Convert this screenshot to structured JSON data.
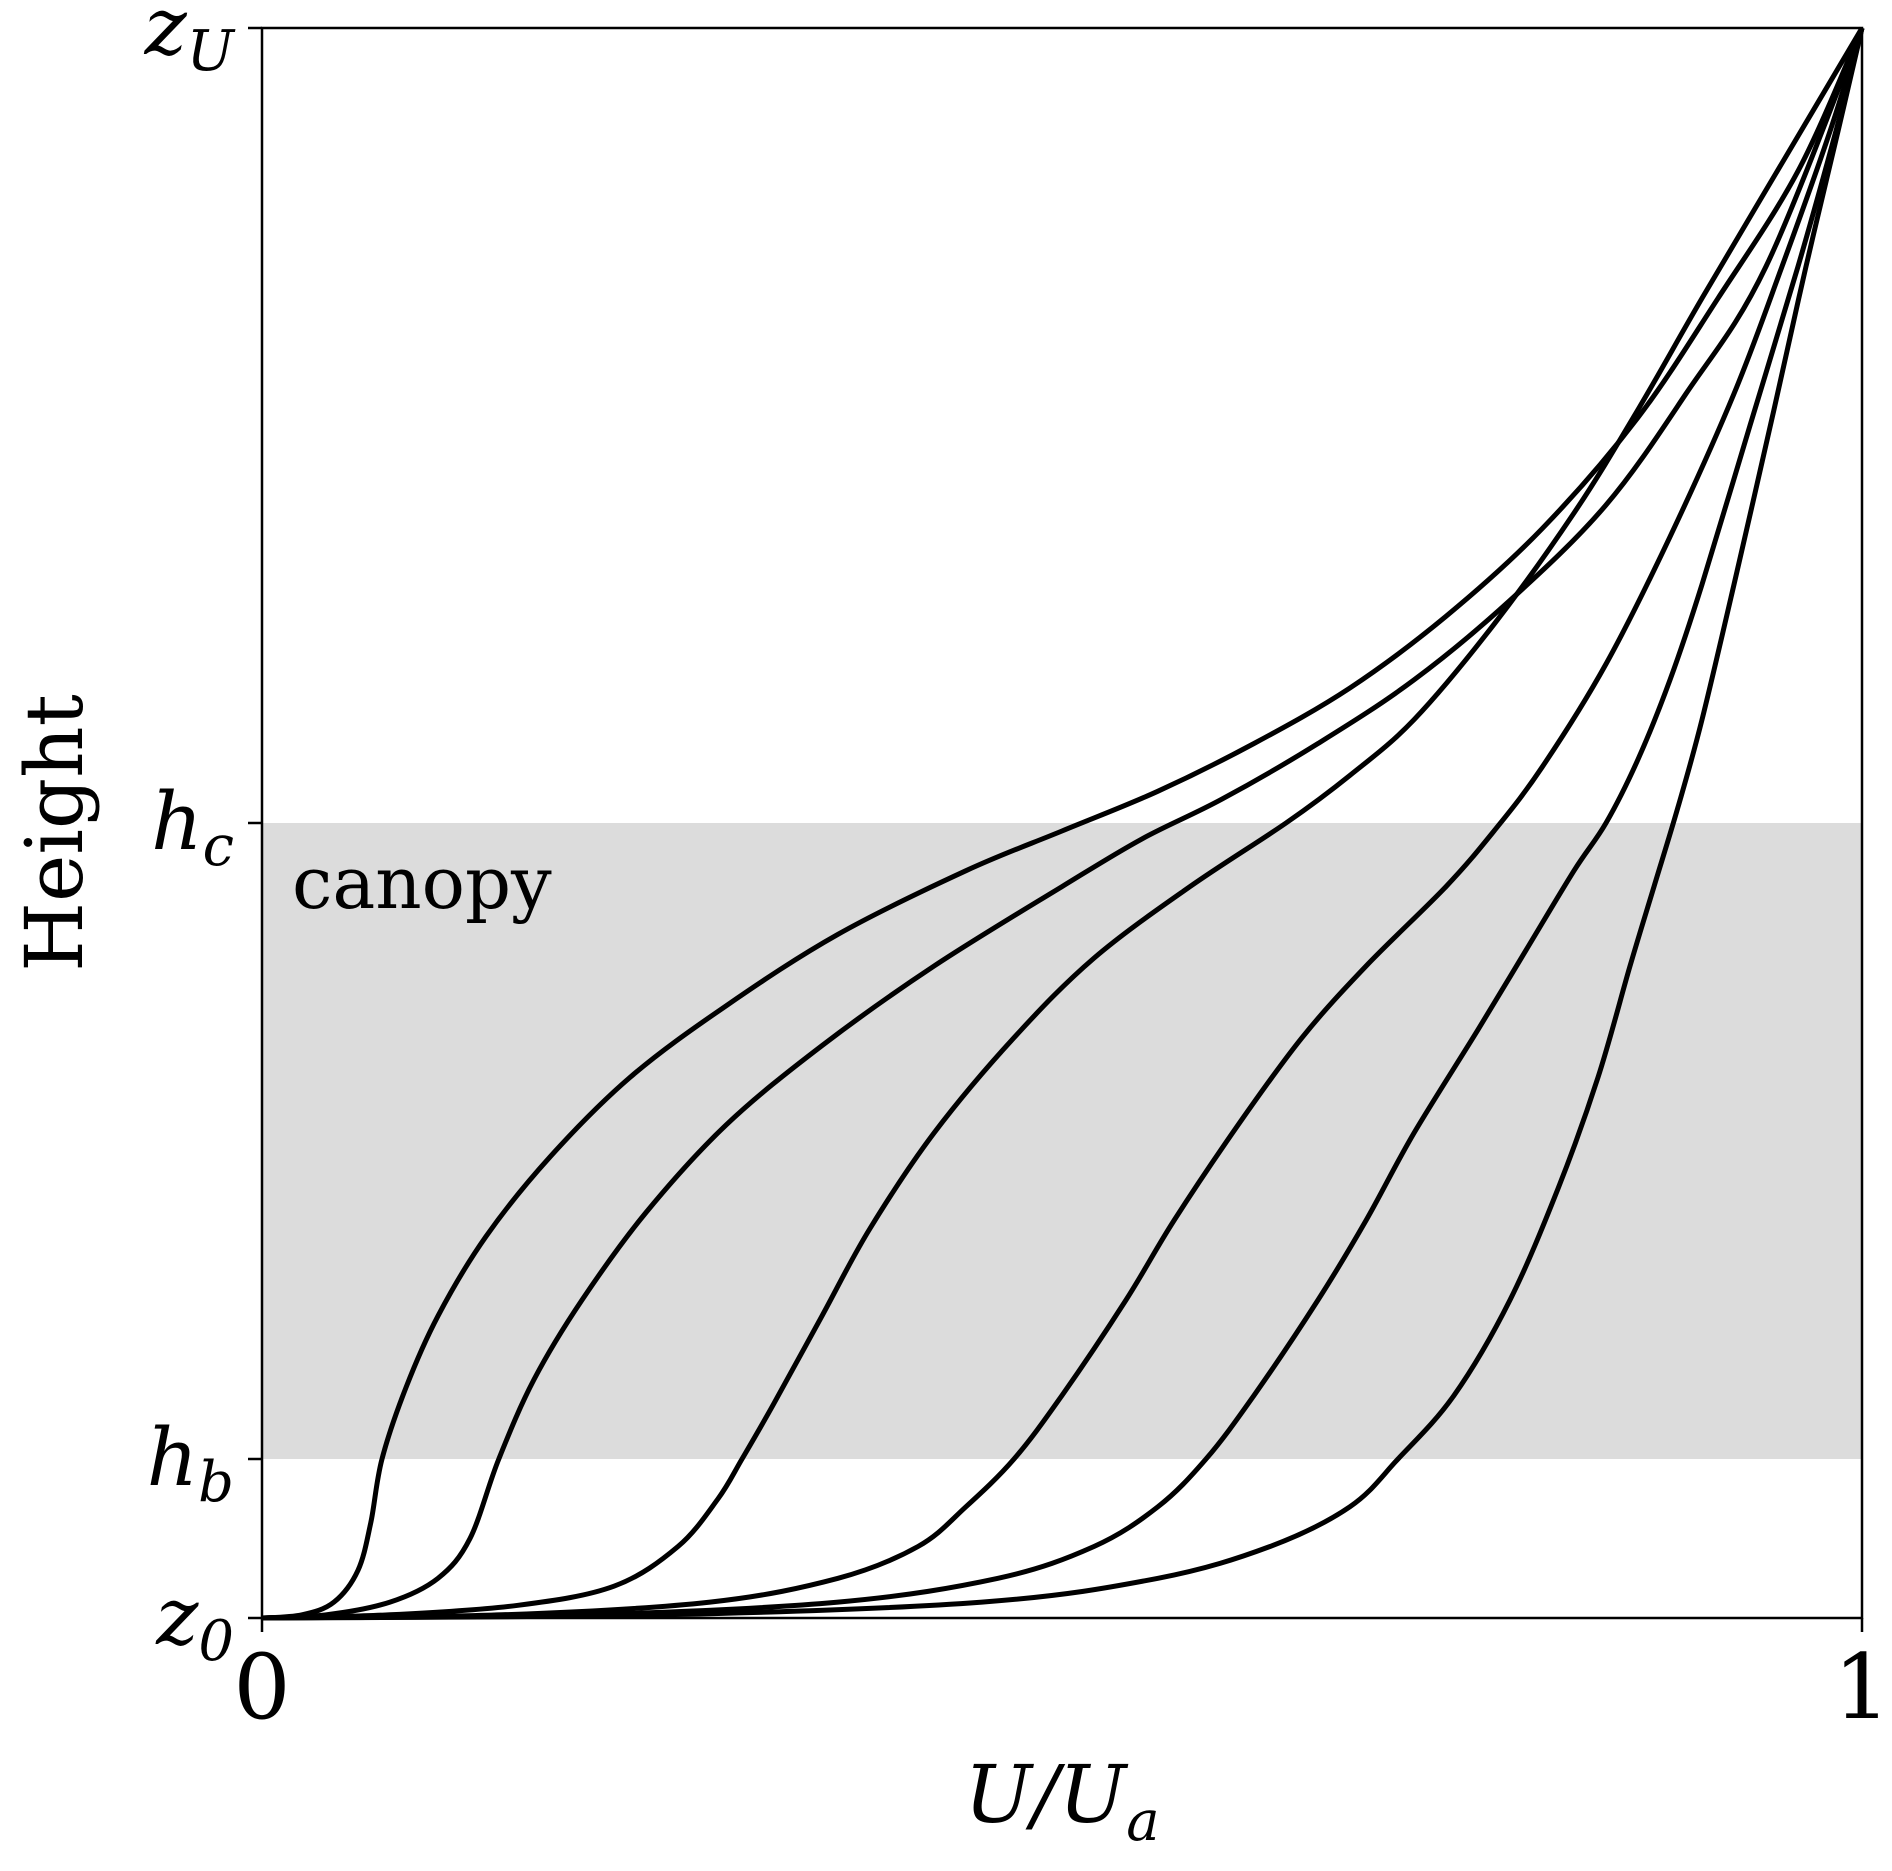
{
  "chart_data": {
    "type": "line",
    "xlabel": {
      "main": "U/U",
      "sub": "a"
    },
    "ylabel": "Height",
    "xlim": [
      0,
      1
    ],
    "ylim": [
      0,
      1
    ],
    "x_ticks": [
      {
        "value": 0,
        "label": "0"
      },
      {
        "value": 1,
        "label": "1"
      }
    ],
    "y_ticks": [
      {
        "value": 0.0,
        "main": "z",
        "sub": "0"
      },
      {
        "value": 0.1,
        "main": "h",
        "sub": "b"
      },
      {
        "value": 0.5,
        "main": "h",
        "sub": "c"
      },
      {
        "value": 1.0,
        "main": "z",
        "sub": "U"
      }
    ],
    "shaded_region": {
      "label": "canopy",
      "y_from": 0.1,
      "y_to": 0.5,
      "color": "#dcdcdc"
    },
    "grid": false,
    "line_color": "#000000",
    "series": [
      {
        "points": [
          [
            0,
            0
          ],
          [
            0.025,
            0.002
          ],
          [
            0.045,
            0.01
          ],
          [
            0.06,
            0.03
          ],
          [
            0.068,
            0.06
          ],
          [
            0.075,
            0.1
          ],
          [
            0.09,
            0.145
          ],
          [
            0.11,
            0.19
          ],
          [
            0.14,
            0.24
          ],
          [
            0.18,
            0.29
          ],
          [
            0.23,
            0.34
          ],
          [
            0.29,
            0.385
          ],
          [
            0.36,
            0.43
          ],
          [
            0.44,
            0.47
          ],
          [
            0.5,
            0.495
          ],
          [
            0.56,
            0.52
          ],
          [
            0.62,
            0.55
          ],
          [
            0.68,
            0.585
          ],
          [
            0.74,
            0.63
          ],
          [
            0.8,
            0.685
          ],
          [
            0.86,
            0.755
          ],
          [
            0.91,
            0.83
          ],
          [
            0.96,
            0.91
          ],
          [
            1.0,
            1.0
          ]
        ]
      },
      {
        "points": [
          [
            0,
            0
          ],
          [
            0.04,
            0.002
          ],
          [
            0.08,
            0.01
          ],
          [
            0.11,
            0.025
          ],
          [
            0.13,
            0.05
          ],
          [
            0.148,
            0.1
          ],
          [
            0.17,
            0.15
          ],
          [
            0.2,
            0.2
          ],
          [
            0.24,
            0.255
          ],
          [
            0.29,
            0.31
          ],
          [
            0.35,
            0.36
          ],
          [
            0.42,
            0.41
          ],
          [
            0.5,
            0.46
          ],
          [
            0.55,
            0.49
          ],
          [
            0.6,
            0.515
          ],
          [
            0.66,
            0.55
          ],
          [
            0.72,
            0.59
          ],
          [
            0.78,
            0.64
          ],
          [
            0.84,
            0.7
          ],
          [
            0.89,
            0.77
          ],
          [
            0.94,
            0.85
          ],
          [
            1.0,
            1.0
          ]
        ]
      },
      {
        "points": [
          [
            0,
            0
          ],
          [
            0.08,
            0.002
          ],
          [
            0.16,
            0.008
          ],
          [
            0.22,
            0.02
          ],
          [
            0.26,
            0.045
          ],
          [
            0.285,
            0.075
          ],
          [
            0.3,
            0.1
          ],
          [
            0.32,
            0.135
          ],
          [
            0.35,
            0.19
          ],
          [
            0.38,
            0.245
          ],
          [
            0.42,
            0.305
          ],
          [
            0.47,
            0.365
          ],
          [
            0.52,
            0.415
          ],
          [
            0.58,
            0.46
          ],
          [
            0.64,
            0.5
          ],
          [
            0.68,
            0.53
          ],
          [
            0.72,
            0.565
          ],
          [
            0.77,
            0.625
          ],
          [
            0.82,
            0.695
          ],
          [
            0.86,
            0.76
          ],
          [
            0.9,
            0.83
          ],
          [
            0.95,
            0.915
          ],
          [
            1.0,
            1.0
          ]
        ]
      },
      {
        "points": [
          [
            0,
            0
          ],
          [
            0.15,
            0.002
          ],
          [
            0.28,
            0.01
          ],
          [
            0.36,
            0.025
          ],
          [
            0.41,
            0.045
          ],
          [
            0.44,
            0.07
          ],
          [
            0.47,
            0.1
          ],
          [
            0.5,
            0.14
          ],
          [
            0.54,
            0.2
          ],
          [
            0.57,
            0.25
          ],
          [
            0.61,
            0.31
          ],
          [
            0.65,
            0.365
          ],
          [
            0.69,
            0.41
          ],
          [
            0.74,
            0.46
          ],
          [
            0.77,
            0.495
          ],
          [
            0.8,
            0.535
          ],
          [
            0.84,
            0.6
          ],
          [
            0.88,
            0.68
          ],
          [
            0.92,
            0.77
          ],
          [
            0.95,
            0.85
          ],
          [
            0.98,
            0.935
          ],
          [
            1.0,
            1.0
          ]
        ]
      },
      {
        "points": [
          [
            0,
            0
          ],
          [
            0.2,
            0.002
          ],
          [
            0.36,
            0.01
          ],
          [
            0.46,
            0.025
          ],
          [
            0.52,
            0.045
          ],
          [
            0.56,
            0.07
          ],
          [
            0.59,
            0.1
          ],
          [
            0.62,
            0.14
          ],
          [
            0.66,
            0.2
          ],
          [
            0.69,
            0.25
          ],
          [
            0.72,
            0.305
          ],
          [
            0.76,
            0.37
          ],
          [
            0.79,
            0.42
          ],
          [
            0.82,
            0.47
          ],
          [
            0.84,
            0.5
          ],
          [
            0.86,
            0.54
          ],
          [
            0.88,
            0.59
          ],
          [
            0.9,
            0.65
          ],
          [
            0.93,
            0.75
          ],
          [
            0.96,
            0.85
          ],
          [
            0.985,
            0.94
          ],
          [
            1.0,
            1.0
          ]
        ]
      },
      {
        "points": [
          [
            0,
            0
          ],
          [
            0.25,
            0.002
          ],
          [
            0.45,
            0.01
          ],
          [
            0.56,
            0.025
          ],
          [
            0.63,
            0.045
          ],
          [
            0.68,
            0.07
          ],
          [
            0.71,
            0.1
          ],
          [
            0.745,
            0.14
          ],
          [
            0.78,
            0.2
          ],
          [
            0.81,
            0.27
          ],
          [
            0.835,
            0.34
          ],
          [
            0.855,
            0.41
          ],
          [
            0.87,
            0.46
          ],
          [
            0.885,
            0.51
          ],
          [
            0.9,
            0.565
          ],
          [
            0.92,
            0.65
          ],
          [
            0.945,
            0.76
          ],
          [
            0.965,
            0.85
          ],
          [
            0.985,
            0.935
          ],
          [
            1.0,
            1.0
          ]
        ]
      }
    ]
  }
}
